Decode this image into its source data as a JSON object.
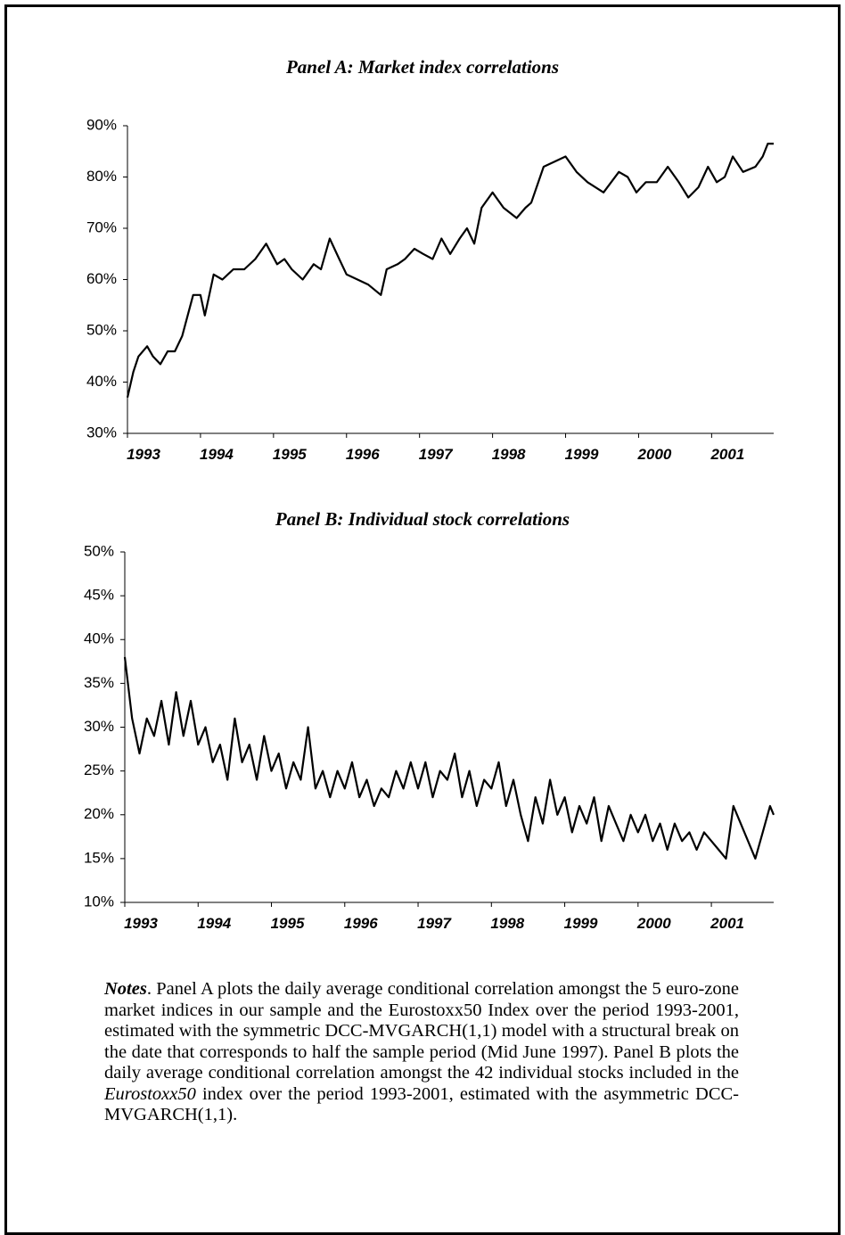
{
  "chart_data": [
    {
      "type": "line",
      "title": "Panel A: Market index correlations",
      "color": "#000000",
      "xlim": [
        1993,
        2001.85
      ],
      "xticks": [
        1993,
        1994,
        1995,
        1996,
        1997,
        1998,
        1999,
        2000,
        2001
      ],
      "ylim": [
        30,
        90
      ],
      "yticks": [
        {
          "value": 30,
          "label": "30%"
        },
        {
          "value": 40,
          "label": "40%"
        },
        {
          "value": 50,
          "label": "50%"
        },
        {
          "value": 60,
          "label": "60%"
        },
        {
          "value": 70,
          "label": "70%"
        },
        {
          "value": 80,
          "label": "80%"
        },
        {
          "value": 90,
          "label": "90%"
        }
      ],
      "x": [
        1993.0,
        1993.08,
        1993.15,
        1993.27,
        1993.35,
        1993.45,
        1993.55,
        1993.65,
        1993.75,
        1993.9,
        1994.0,
        1994.06,
        1994.12,
        1994.18,
        1994.3,
        1994.45,
        1994.6,
        1994.75,
        1994.9,
        1995.05,
        1995.15,
        1995.25,
        1995.4,
        1995.55,
        1995.65,
        1995.77,
        1995.9,
        1996.0,
        1996.15,
        1996.3,
        1996.47,
        1996.55,
        1996.7,
        1996.8,
        1996.93,
        1997.05,
        1997.18,
        1997.3,
        1997.42,
        1997.55,
        1997.65,
        1997.75,
        1997.85,
        1998.0,
        1998.15,
        1998.33,
        1998.45,
        1998.53,
        1998.7,
        1998.85,
        1999.0,
        1999.15,
        1999.3,
        1999.52,
        1999.73,
        1999.85,
        1999.97,
        2000.1,
        2000.25,
        2000.4,
        2000.55,
        2000.68,
        2000.82,
        2000.95,
        2001.07,
        2001.18,
        2001.29,
        2001.43,
        2001.6,
        2001.7,
        2001.77,
        2001.85
      ],
      "values": [
        37,
        42,
        45,
        47,
        45,
        43.5,
        46,
        46,
        49,
        57,
        57,
        53,
        57,
        61,
        60,
        62,
        62,
        64,
        67,
        63,
        64,
        62,
        60,
        63,
        62,
        68,
        64,
        61,
        60,
        59,
        57,
        62,
        63,
        64,
        66,
        65,
        64,
        68,
        65,
        68,
        70,
        67,
        74,
        77,
        74,
        72,
        74,
        75,
        82,
        83,
        84,
        81,
        79,
        77,
        81,
        80,
        77,
        79,
        79,
        82,
        79,
        76,
        78,
        82,
        79,
        80,
        84,
        81,
        82,
        84,
        86.5,
        86.5
      ]
    },
    {
      "type": "line",
      "title": "Panel B: Individual stock correlations",
      "color": "#000000",
      "xlim": [
        1993,
        2001.85
      ],
      "xticks": [
        1993,
        1994,
        1995,
        1996,
        1997,
        1998,
        1999,
        2000,
        2001
      ],
      "ylim": [
        10,
        50
      ],
      "yticks": [
        {
          "value": 10,
          "label": "10%"
        },
        {
          "value": 15,
          "label": "15%"
        },
        {
          "value": 20,
          "label": "20%"
        },
        {
          "value": 25,
          "label": "25%"
        },
        {
          "value": 30,
          "label": "30%"
        },
        {
          "value": 35,
          "label": "35%"
        },
        {
          "value": 40,
          "label": "40%"
        },
        {
          "value": 45,
          "label": "45%"
        },
        {
          "value": 50,
          "label": "50%"
        }
      ],
      "x": [
        1993.0,
        1993.1,
        1993.2,
        1993.3,
        1993.4,
        1993.5,
        1993.6,
        1993.7,
        1993.8,
        1993.9,
        1994.0,
        1994.1,
        1994.2,
        1994.3,
        1994.4,
        1994.5,
        1994.6,
        1994.7,
        1994.8,
        1994.9,
        1995.0,
        1995.1,
        1995.2,
        1995.3,
        1995.4,
        1995.5,
        1995.6,
        1995.7,
        1995.8,
        1995.9,
        1996.0,
        1996.1,
        1996.2,
        1996.3,
        1996.4,
        1996.5,
        1996.6,
        1996.7,
        1996.8,
        1996.9,
        1997.0,
        1997.1,
        1997.2,
        1997.3,
        1997.4,
        1997.5,
        1997.6,
        1997.7,
        1997.8,
        1997.9,
        1998.0,
        1998.1,
        1998.2,
        1998.3,
        1998.4,
        1998.5,
        1998.6,
        1998.7,
        1998.8,
        1998.9,
        1999.0,
        1999.1,
        1999.2,
        1999.3,
        1999.4,
        1999.5,
        1999.6,
        1999.7,
        1999.8,
        1999.9,
        2000.0,
        2000.1,
        2000.2,
        2000.3,
        2000.4,
        2000.5,
        2000.6,
        2000.7,
        2000.8,
        2000.9,
        2001.0,
        2001.1,
        2001.2,
        2001.3,
        2001.4,
        2001.5,
        2001.6,
        2001.7,
        2001.8,
        2001.85
      ],
      "values": [
        38,
        31,
        27,
        31,
        29,
        33,
        28,
        34,
        29,
        33,
        28,
        30,
        26,
        28,
        24,
        31,
        26,
        28,
        24,
        29,
        25,
        27,
        23,
        26,
        24,
        30,
        23,
        25,
        22,
        25,
        23,
        26,
        22,
        24,
        21,
        23,
        22,
        25,
        23,
        26,
        23,
        26,
        22,
        25,
        24,
        27,
        22,
        25,
        21,
        24,
        23,
        26,
        21,
        24,
        20,
        17,
        22,
        19,
        24,
        20,
        22,
        18,
        21,
        19,
        22,
        17,
        21,
        19,
        17,
        20,
        18,
        20,
        17,
        19,
        16,
        19,
        17,
        18,
        16,
        18,
        17,
        16,
        15,
        21,
        19,
        17,
        15,
        18,
        21,
        20
      ]
    }
  ],
  "notes": [
    {
      "text": "Notes",
      "style": "bold-italic"
    },
    {
      "text": ". Panel A plots the daily average conditional correlation amongst the 5 euro-zone market indices in our sample and the Eurostoxx50 Index over the period 1993-2001, estimated with the symmetric DCC-MVGARCH(1,1) model with a structural break on the date that corresponds to half the sample period (Mid June 1997).  Panel B plots the daily average conditional correlation amongst the 42 individual stocks included in the ",
      "style": "normal"
    },
    {
      "text": "Eurostoxx50",
      "style": "italic"
    },
    {
      "text": " index over the period 1993-2001, estimated with the asymmetric DCC-MVGARCH(1,1).",
      "style": "normal"
    }
  ]
}
